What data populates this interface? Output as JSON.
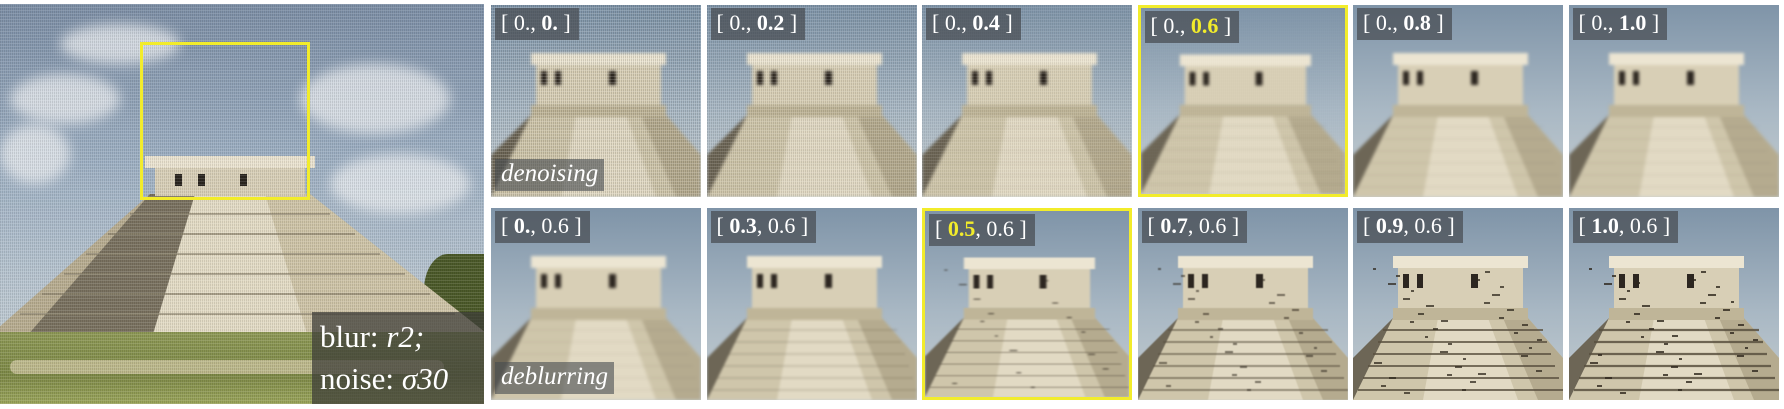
{
  "main": {
    "degradation_line1_prefix": "blur: ",
    "degradation_line1_value": "r2;",
    "degradation_line2_prefix": "noise: ",
    "degradation_line2_value": "σ30"
  },
  "highlight_color": "#f2ec2b",
  "rows": [
    {
      "caption": "denoising",
      "tiles": [
        {
          "open": "[ ",
          "first": "0.,",
          "first_bold": false,
          "second": " 0.",
          "second_bold": true,
          "close": " ]",
          "highlight": false,
          "noise": 1.0,
          "sharp": 0.0
        },
        {
          "open": "[ ",
          "first": "0.,",
          "first_bold": false,
          "second": " 0.2",
          "second_bold": true,
          "close": " ]",
          "highlight": false,
          "noise": 0.8,
          "sharp": 0.0
        },
        {
          "open": "[ ",
          "first": "0.,",
          "first_bold": false,
          "second": " 0.4",
          "second_bold": true,
          "close": " ]",
          "highlight": false,
          "noise": 0.55,
          "sharp": 0.0
        },
        {
          "open": "[ ",
          "first": "0.,",
          "first_bold": false,
          "second": " 0.6",
          "second_bold": true,
          "close": " ]",
          "highlight": true,
          "noise": 0.05,
          "sharp": 0.0
        },
        {
          "open": "[ ",
          "first": "0.,",
          "first_bold": false,
          "second": " 0.8",
          "second_bold": true,
          "close": " ]",
          "highlight": false,
          "noise": 0.0,
          "sharp": 0.0
        },
        {
          "open": "[ ",
          "first": "0.,",
          "first_bold": false,
          "second": " 1.0",
          "second_bold": true,
          "close": " ]",
          "highlight": false,
          "noise": 0.0,
          "sharp": 0.0
        }
      ]
    },
    {
      "caption": "deblurring",
      "tiles": [
        {
          "open": "[ ",
          "first": "0.",
          "first_bold": true,
          "second": ", 0.6",
          "second_bold": false,
          "close": " ]",
          "highlight": false,
          "noise": 0.0,
          "sharp": 0.0
        },
        {
          "open": "[ ",
          "first": "0.3",
          "first_bold": true,
          "second": ", 0.6",
          "second_bold": false,
          "close": " ]",
          "highlight": false,
          "noise": 0.0,
          "sharp": 0.2
        },
        {
          "open": "[ ",
          "first": "0.5",
          "first_bold": true,
          "second": ", 0.6",
          "second_bold": false,
          "close": " ]",
          "highlight": true,
          "noise": 0.0,
          "sharp": 0.4
        },
        {
          "open": "[ ",
          "first": "0.7",
          "first_bold": true,
          "second": ", 0.6",
          "second_bold": false,
          "close": " ]",
          "highlight": false,
          "noise": 0.0,
          "sharp": 0.65
        },
        {
          "open": "[ ",
          "first": "0.9",
          "first_bold": true,
          "second": ", 0.6",
          "second_bold": false,
          "close": " ]",
          "highlight": false,
          "noise": 0.0,
          "sharp": 0.9
        },
        {
          "open": "[ ",
          "first": "1.0",
          "first_bold": true,
          "second": ", 0.6",
          "second_bold": false,
          "close": " ]",
          "highlight": false,
          "noise": 0.0,
          "sharp": 1.0
        }
      ]
    }
  ]
}
